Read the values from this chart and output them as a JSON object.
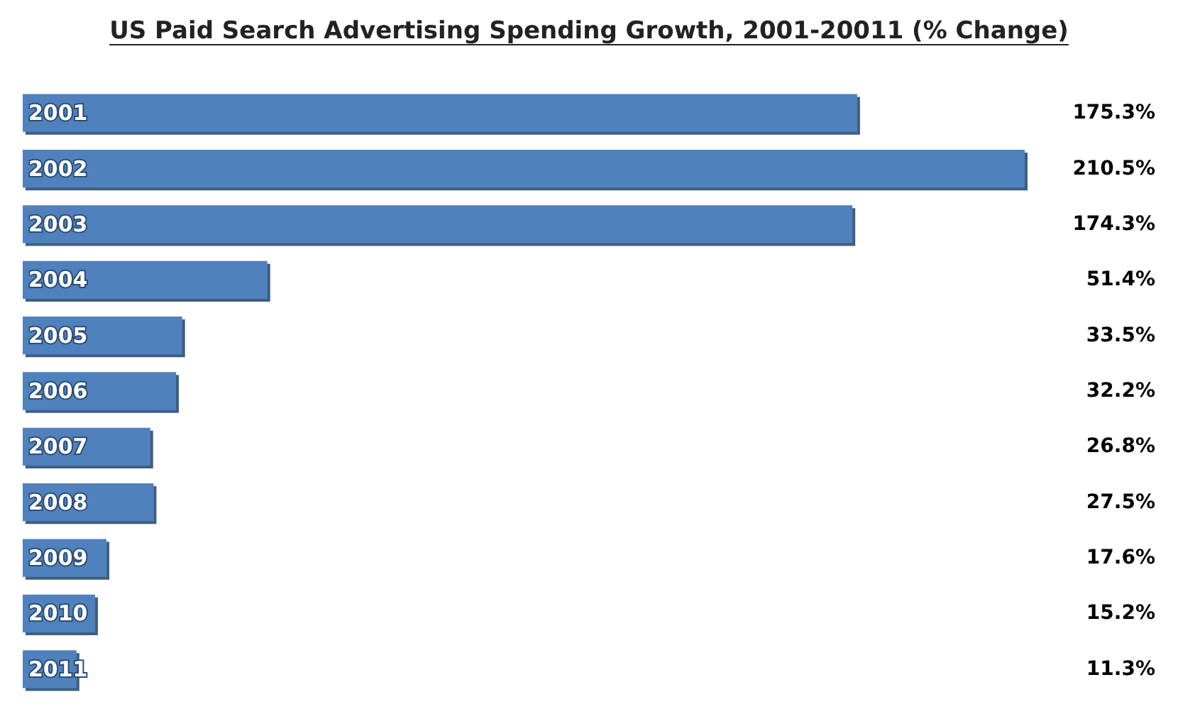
{
  "chart_data": {
    "type": "bar",
    "orientation": "horizontal",
    "title": "US Paid Search Advertising Spending Growth, 2001-20011 (% Change)",
    "categories": [
      "2001",
      "2002",
      "2003",
      "2004",
      "2005",
      "2006",
      "2007",
      "2008",
      "2009",
      "2010",
      "2011"
    ],
    "values": [
      175.3,
      210.5,
      174.3,
      51.4,
      33.5,
      32.2,
      26.8,
      27.5,
      17.6,
      15.2,
      11.3
    ],
    "value_labels": [
      "175.3%",
      "210.5%",
      "174.3%",
      "51.4%",
      "33.5%",
      "32.2%",
      "26.8%",
      "27.5%",
      "17.6%",
      "15.2%",
      "11.3%"
    ],
    "color": "#4f81bd"
  }
}
